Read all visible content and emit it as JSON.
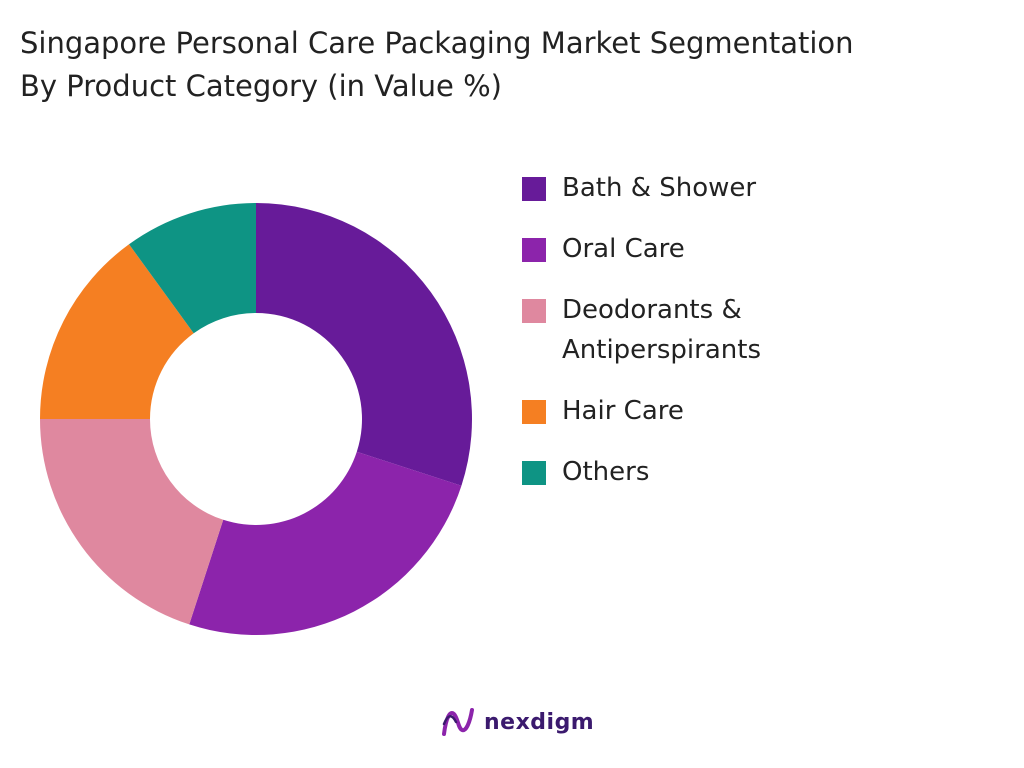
{
  "chart_data": {
    "type": "pie",
    "donut": true,
    "title": "Singapore Personal Care Packaging Market Segmentation",
    "subtitle": "By Product Category (in Value %)",
    "legend_position": "right",
    "series": [
      {
        "name": "Bath & Shower",
        "value": 30,
        "color": "#671b99"
      },
      {
        "name": "Oral Care",
        "value": 25,
        "color": "#8c24ab"
      },
      {
        "name": "Deodorants & Antiperspirants",
        "value": 20,
        "color": "#df889f"
      },
      {
        "name": "Hair Care",
        "value": 15,
        "color": "#f57f22"
      },
      {
        "name": "Others",
        "value": 10,
        "color": "#0e9484"
      }
    ]
  },
  "legend_labels": [
    "Bath & Shower",
    "Oral Care",
    "Deodorants &\nAntiperspirants",
    "Hair Care",
    "Others"
  ],
  "brand": {
    "name": "nexdigm",
    "logo_icon": "nexdigm-logo-icon",
    "logo_colors": [
      "#8c24ab",
      "#3b1a6e"
    ]
  }
}
